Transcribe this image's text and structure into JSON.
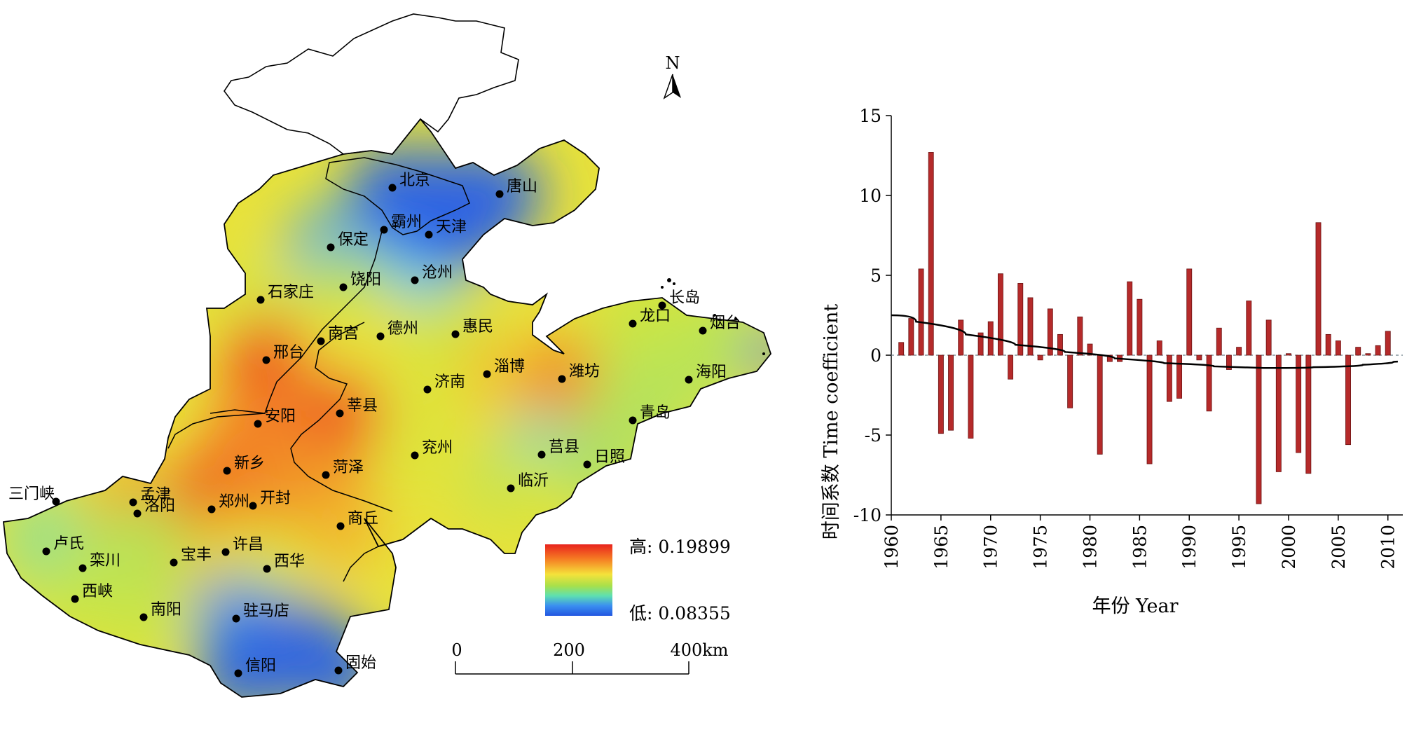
{
  "map": {
    "north_label": "N",
    "legend": {
      "high_label": "高: 0.19899",
      "low_label": "低: 0.08355",
      "colors": [
        "#e8231d",
        "#f57a23",
        "#f5e23a",
        "#a8e04a",
        "#5ee0b0",
        "#3a8ff0",
        "#2256e0"
      ]
    },
    "scale_bar": {
      "ticks": [
        "0",
        "200",
        "400km"
      ]
    },
    "cities": [
      {
        "name": "北京",
        "c": "#2a62e6"
      },
      {
        "name": "唐山",
        "c": "#2a62e6"
      },
      {
        "name": "霸州",
        "c": "#2a62e6"
      },
      {
        "name": "天津",
        "c": "#2a62e6"
      },
      {
        "name": "保定",
        "c": "#4aa6e8"
      },
      {
        "name": "沧州",
        "c": "#6fd0e6"
      },
      {
        "name": "饶阳",
        "c": "#b7e35a"
      },
      {
        "name": "石家庄",
        "c": "#d6e440"
      },
      {
        "name": "长岛",
        "c": "#d6e440"
      },
      {
        "name": "龙口",
        "c": "#c9e545"
      },
      {
        "name": "烟台",
        "c": "#c9e545"
      },
      {
        "name": "南宫",
        "c": "#e8e23a"
      },
      {
        "name": "德州",
        "c": "#e8e23a"
      },
      {
        "name": "惠民",
        "c": "#c9e545"
      },
      {
        "name": "邢台",
        "c": "#ef4a1f"
      },
      {
        "name": "淄博",
        "c": "#f2c431"
      },
      {
        "name": "潍坊",
        "c": "#f28a26"
      },
      {
        "name": "济南",
        "c": "#dde43c"
      },
      {
        "name": "海阳",
        "c": "#b7e35a"
      },
      {
        "name": "莘县",
        "c": "#ef4a1f"
      },
      {
        "name": "安阳",
        "c": "#f47a24"
      },
      {
        "name": "青岛",
        "c": "#a8e06a"
      },
      {
        "name": "兖州",
        "c": "#dde43c"
      },
      {
        "name": "莒县",
        "c": "#8ad8c6"
      },
      {
        "name": "日照",
        "c": "#a8e06a"
      },
      {
        "name": "新乡",
        "c": "#f47a24"
      },
      {
        "name": "菏泽",
        "c": "#f28a26"
      },
      {
        "name": "临沂",
        "c": "#b7e35a"
      },
      {
        "name": "三门峡",
        "c": "#dde43c"
      },
      {
        "name": "孟津",
        "c": "#f2a02a"
      },
      {
        "name": "洛阳",
        "c": "#f2a02a"
      },
      {
        "name": "郑州",
        "c": "#ea3a1e"
      },
      {
        "name": "开封",
        "c": "#f28a26"
      },
      {
        "name": "商丘",
        "c": "#f2b22c"
      },
      {
        "name": "卢氏",
        "c": "#9be08a"
      },
      {
        "name": "栾川",
        "c": "#b7e35a"
      },
      {
        "name": "宝丰",
        "c": "#e8c830"
      },
      {
        "name": "许昌",
        "c": "#e8d030"
      },
      {
        "name": "西华",
        "c": "#dde43c"
      },
      {
        "name": "西峡",
        "c": "#c9e545"
      },
      {
        "name": "南阳",
        "c": "#c9e545"
      },
      {
        "name": "驻马店",
        "c": "#3a8ff0"
      },
      {
        "name": "信阳",
        "c": "#2a62e6"
      },
      {
        "name": "固始",
        "c": "#2a62e6"
      }
    ]
  },
  "chart_data": {
    "type": "bar",
    "title": "",
    "xlabel": "年份 Year",
    "ylabel": "时间系数 Time coefficient",
    "xlim": [
      1960,
      2011.5
    ],
    "ylim": [
      -10,
      15
    ],
    "x_ticks": [
      "1960",
      "1965",
      "1970",
      "1975",
      "1980",
      "1985",
      "1990",
      "1995",
      "2000",
      "2005",
      "2010"
    ],
    "y_ticks": [
      "-10",
      "-5",
      "0",
      "5",
      "10",
      "15"
    ],
    "bar_color": "#b52a2a",
    "trend_color": "#000000",
    "x": [
      1961,
      1962,
      1963,
      1964,
      1965,
      1966,
      1967,
      1968,
      1969,
      1970,
      1971,
      1972,
      1973,
      1974,
      1975,
      1976,
      1977,
      1978,
      1979,
      1980,
      1981,
      1982,
      1983,
      1984,
      1985,
      1986,
      1987,
      1988,
      1989,
      1990,
      1991,
      1992,
      1993,
      1994,
      1995,
      1996,
      1997,
      1998,
      1999,
      2000,
      2001,
      2002,
      2003,
      2004,
      2005,
      2006,
      2007,
      2008,
      2009,
      2010
    ],
    "values": [
      0.8,
      2.3,
      5.4,
      12.7,
      -4.9,
      -4.7,
      2.2,
      -5.2,
      1.4,
      2.1,
      5.1,
      -1.5,
      4.5,
      3.6,
      -0.3,
      2.9,
      1.3,
      -3.3,
      2.4,
      0.7,
      -6.2,
      -0.4,
      -0.4,
      4.6,
      3.5,
      -6.8,
      0.9,
      -2.9,
      -2.7,
      5.4,
      -0.3,
      -3.5,
      1.7,
      -0.9,
      0.5,
      3.4,
      -9.3,
      2.2,
      -7.3,
      0.1,
      -6.1,
      -7.4,
      8.3,
      1.3,
      0.9,
      -5.6,
      0.5,
      0.1,
      0.6,
      1.5
    ],
    "trend": {
      "x": [
        1960,
        1965,
        1970,
        1975,
        1980,
        1985,
        1990,
        1995,
        2000,
        2005,
        2010,
        2011
      ],
      "y": [
        2.5,
        1.7,
        0.9,
        0.4,
        0.0,
        -0.4,
        -0.6,
        -0.8,
        -0.8,
        -0.7,
        -0.5,
        -0.4
      ]
    }
  }
}
